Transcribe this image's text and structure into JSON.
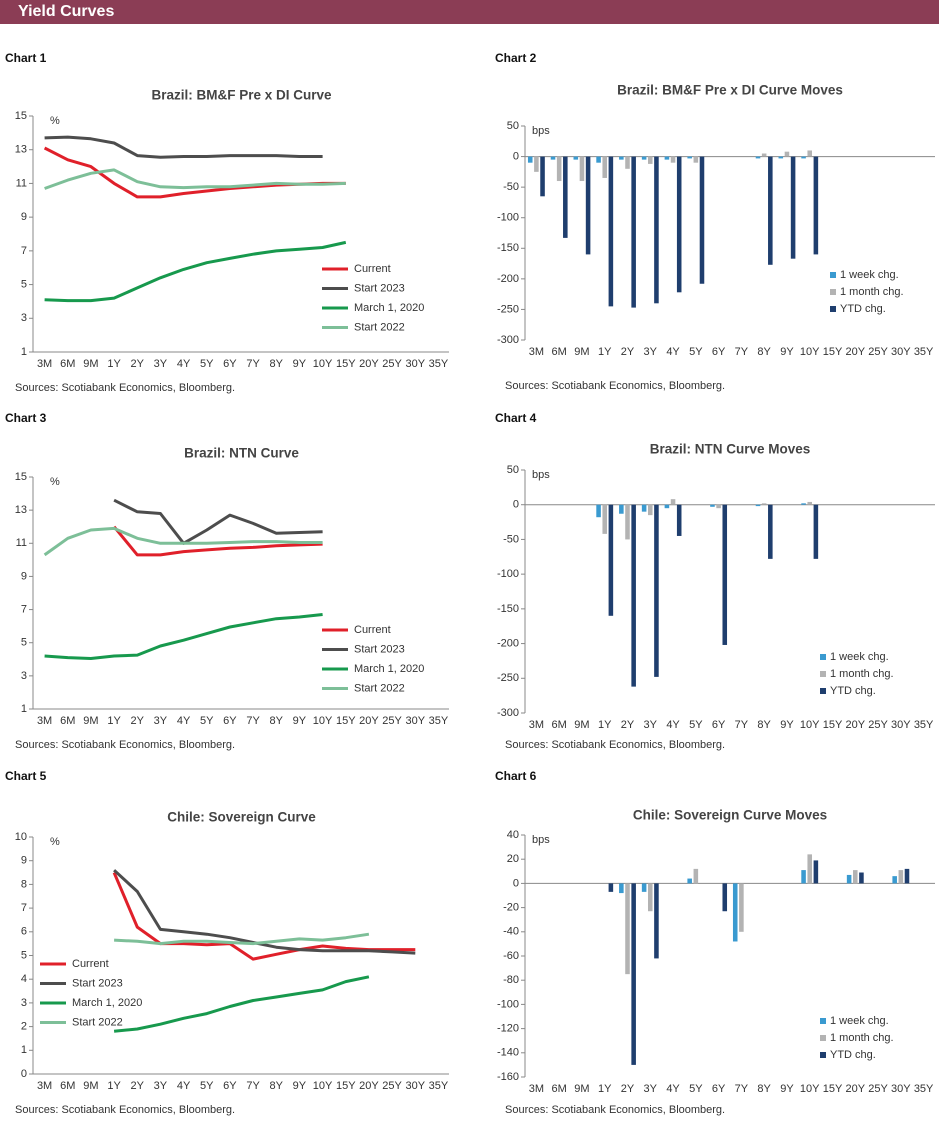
{
  "header": {
    "title": "Yield Curves"
  },
  "chart_data": [
    {
      "type": "line",
      "label": "Chart 1",
      "title": "Brazil: BM&F Pre x DI Curve",
      "y_label": "%",
      "source": "Sources: Scotiabank Economics, Bloomberg.",
      "legend": "lower right",
      "categories": [
        "3M",
        "6M",
        "9M",
        "1Y",
        "2Y",
        "3Y",
        "4Y",
        "5Y",
        "6Y",
        "7Y",
        "8Y",
        "9Y",
        "10Y",
        "15Y",
        "20Y",
        "25Y",
        "30Y",
        "35Y"
      ],
      "ylim": [
        1,
        15
      ],
      "yticks": [
        1,
        3,
        5,
        7,
        9,
        11,
        13,
        15
      ],
      "series": [
        {
          "name": "Current",
          "color": "#e0202a",
          "values": [
            13.1,
            12.4,
            12.0,
            11.0,
            10.2,
            10.2,
            10.4,
            10.55,
            10.7,
            10.8,
            10.9,
            10.95,
            11.0,
            11.0,
            null,
            null,
            null,
            null
          ]
        },
        {
          "name": "Start 2023",
          "color": "#4d4d4d",
          "values": [
            13.7,
            13.75,
            13.65,
            13.4,
            12.65,
            12.55,
            12.6,
            12.6,
            12.65,
            12.65,
            12.65,
            12.6,
            12.6,
            null,
            null,
            null,
            null,
            null
          ]
        },
        {
          "name": "March 1, 2020",
          "color": "#17994d",
          "values": [
            4.1,
            4.05,
            4.05,
            4.2,
            4.8,
            5.4,
            5.9,
            6.3,
            6.55,
            6.8,
            7.0,
            7.1,
            7.2,
            7.5,
            null,
            null,
            null,
            null
          ]
        },
        {
          "name": "Start 2022",
          "color": "#7dbf98",
          "values": [
            10.7,
            11.2,
            11.6,
            11.8,
            11.1,
            10.8,
            10.75,
            10.8,
            10.8,
            10.9,
            11.0,
            10.95,
            10.95,
            11.0,
            null,
            null,
            null,
            null
          ]
        }
      ]
    },
    {
      "type": "bar",
      "label": "Chart 2",
      "title": "Brazil: BM&F Pre x DI Curve Moves",
      "y_label": "bps",
      "source": "Sources: Scotiabank Economics, Bloomberg.",
      "legend": "lower right",
      "categories": [
        "3M",
        "6M",
        "9M",
        "1Y",
        "2Y",
        "3Y",
        "4Y",
        "5Y",
        "6Y",
        "7Y",
        "8Y",
        "9Y",
        "10Y",
        "15Y",
        "20Y",
        "25Y",
        "30Y",
        "35Y"
      ],
      "ylim": [
        -300,
        50
      ],
      "yticks": [
        -300,
        -250,
        -200,
        -150,
        -100,
        -50,
        0,
        50
      ],
      "series": [
        {
          "name": "1 week chg.",
          "color": "#3a9ad0",
          "values": [
            -10,
            -5,
            -5,
            -10,
            -5,
            -5,
            -5,
            -3,
            null,
            null,
            -3,
            -3,
            -3,
            null,
            null,
            null,
            null,
            null
          ]
        },
        {
          "name": "1 month chg.",
          "color": "#b3b3b3",
          "values": [
            -25,
            -40,
            -40,
            -35,
            -20,
            -12,
            -10,
            -10,
            null,
            null,
            5,
            8,
            10,
            null,
            null,
            null,
            null,
            null
          ]
        },
        {
          "name": "YTD chg.",
          "color": "#1f3e6e",
          "values": [
            -65,
            -133,
            -160,
            -245,
            -247,
            -240,
            -222,
            -208,
            null,
            null,
            -177,
            -167,
            -160,
            null,
            null,
            null,
            null,
            null
          ]
        }
      ]
    },
    {
      "type": "line",
      "label": "Chart 3",
      "title": "Brazil: NTN Curve",
      "y_label": "%",
      "source": "Sources: Scotiabank Economics, Bloomberg.",
      "legend": "lower right",
      "categories": [
        "3M",
        "6M",
        "9M",
        "1Y",
        "2Y",
        "3Y",
        "4Y",
        "5Y",
        "6Y",
        "7Y",
        "8Y",
        "9Y",
        "10Y",
        "15Y",
        "20Y",
        "25Y",
        "30Y",
        "35Y"
      ],
      "ylim": [
        1,
        15
      ],
      "yticks": [
        1,
        3,
        5,
        7,
        9,
        11,
        13,
        15
      ],
      "series": [
        {
          "name": "Current",
          "color": "#e0202a",
          "values": [
            null,
            null,
            null,
            12.0,
            10.3,
            10.3,
            10.5,
            10.6,
            10.7,
            10.75,
            10.85,
            10.9,
            10.95,
            null,
            null,
            null,
            null,
            null
          ]
        },
        {
          "name": "Start 2023",
          "color": "#4d4d4d",
          "values": [
            null,
            null,
            null,
            13.6,
            12.9,
            12.8,
            11.0,
            11.8,
            12.7,
            12.2,
            11.6,
            11.65,
            11.7,
            null,
            null,
            null,
            null,
            null
          ]
        },
        {
          "name": "March 1, 2020",
          "color": "#17994d",
          "values": [
            4.2,
            4.1,
            4.05,
            4.2,
            4.25,
            4.8,
            5.15,
            5.55,
            5.95,
            6.2,
            6.45,
            6.55,
            6.7,
            null,
            null,
            null,
            null,
            null
          ]
        },
        {
          "name": "Start 2022",
          "color": "#7dbf98",
          "values": [
            10.3,
            11.3,
            11.8,
            11.9,
            11.3,
            11.0,
            11.0,
            11.0,
            11.05,
            11.1,
            11.1,
            11.05,
            11.05,
            null,
            null,
            null,
            null,
            null
          ]
        }
      ]
    },
    {
      "type": "bar",
      "label": "Chart 4",
      "title": "Brazil: NTN Curve Moves",
      "y_label": "bps",
      "source": "Sources: Scotiabank Economics, Bloomberg.",
      "legend": "lower right",
      "categories": [
        "3M",
        "6M",
        "9M",
        "1Y",
        "2Y",
        "3Y",
        "4Y",
        "5Y",
        "6Y",
        "7Y",
        "8Y",
        "9Y",
        "10Y",
        "15Y",
        "20Y",
        "25Y",
        "30Y",
        "35Y"
      ],
      "ylim": [
        -300,
        50
      ],
      "yticks": [
        -300,
        -250,
        -200,
        -150,
        -100,
        -50,
        0,
        50
      ],
      "series": [
        {
          "name": "1 week chg.",
          "color": "#3a9ad0",
          "values": [
            null,
            null,
            null,
            -18,
            -13,
            -10,
            -5,
            null,
            -3,
            null,
            -2,
            null,
            2,
            null,
            null,
            null,
            null,
            null
          ]
        },
        {
          "name": "1 month chg.",
          "color": "#b3b3b3",
          "values": [
            null,
            null,
            null,
            -42,
            -50,
            -15,
            8,
            null,
            -5,
            null,
            2,
            null,
            4,
            null,
            null,
            null,
            null,
            null
          ]
        },
        {
          "name": "YTD chg.",
          "color": "#1f3e6e",
          "values": [
            null,
            null,
            null,
            -160,
            -262,
            -248,
            -45,
            null,
            -202,
            null,
            -78,
            null,
            -78,
            null,
            null,
            null,
            null,
            null
          ]
        }
      ]
    },
    {
      "type": "line",
      "label": "Chart 5",
      "title": "Chile: Sovereign Curve",
      "y_label": "%",
      "source": "Sources: Scotiabank Economics, Bloomberg.",
      "legend": "upper left",
      "categories": [
        "3M",
        "6M",
        "9M",
        "1Y",
        "2Y",
        "3Y",
        "4Y",
        "5Y",
        "6Y",
        "7Y",
        "8Y",
        "9Y",
        "10Y",
        "15Y",
        "20Y",
        "25Y",
        "30Y",
        "35Y"
      ],
      "ylim": [
        0,
        10
      ],
      "yticks": [
        0,
        1,
        2,
        3,
        4,
        5,
        6,
        7,
        8,
        9,
        10
      ],
      "series": [
        {
          "name": "Current",
          "color": "#e0202a",
          "values": [
            null,
            null,
            null,
            8.5,
            6.2,
            5.5,
            5.5,
            5.45,
            5.5,
            4.85,
            5.05,
            5.25,
            5.4,
            5.3,
            5.25,
            5.25,
            5.25,
            null
          ]
        },
        {
          "name": "Start 2023",
          "color": "#4d4d4d",
          "values": [
            null,
            null,
            null,
            8.6,
            7.7,
            6.1,
            6.0,
            5.9,
            5.75,
            5.55,
            5.35,
            5.25,
            5.2,
            5.2,
            5.2,
            5.15,
            5.1,
            null
          ]
        },
        {
          "name": "March 1, 2020",
          "color": "#17994d",
          "values": [
            null,
            null,
            null,
            1.8,
            1.9,
            2.1,
            2.35,
            2.55,
            2.85,
            3.1,
            3.25,
            3.4,
            3.55,
            3.9,
            4.1,
            null,
            null,
            null
          ]
        },
        {
          "name": "Start 2022",
          "color": "#7dbf98",
          "values": [
            null,
            null,
            null,
            5.65,
            5.6,
            5.5,
            5.6,
            5.6,
            5.55,
            5.5,
            5.6,
            5.7,
            5.65,
            5.75,
            5.9,
            null,
            null,
            null
          ]
        }
      ]
    },
    {
      "type": "bar",
      "label": "Chart 6",
      "title": "Chile: Sovereign Curve Moves",
      "y_label": "bps",
      "source": "Sources: Scotiabank Economics, Bloomberg.",
      "legend": "lower right",
      "categories": [
        "3M",
        "6M",
        "9M",
        "1Y",
        "2Y",
        "3Y",
        "4Y",
        "5Y",
        "6Y",
        "7Y",
        "8Y",
        "9Y",
        "10Y",
        "15Y",
        "20Y",
        "25Y",
        "30Y",
        "35Y"
      ],
      "ylim": [
        -160,
        40
      ],
      "yticks": [
        -160,
        -140,
        -120,
        -100,
        -80,
        -60,
        -40,
        -20,
        0,
        20,
        40
      ],
      "series": [
        {
          "name": "1 week chg.",
          "color": "#3a9ad0",
          "values": [
            null,
            null,
            null,
            null,
            -8,
            -7,
            null,
            4,
            null,
            -48,
            null,
            null,
            11,
            null,
            7,
            null,
            6,
            null
          ]
        },
        {
          "name": "1 month chg.",
          "color": "#b3b3b3",
          "values": [
            null,
            null,
            null,
            null,
            -75,
            -23,
            null,
            12,
            null,
            -40,
            null,
            null,
            24,
            null,
            11,
            null,
            11,
            null
          ]
        },
        {
          "name": "YTD chg.",
          "color": "#1f3e6e",
          "values": [
            null,
            null,
            null,
            -7,
            -150,
            -62,
            null,
            null,
            -23,
            null,
            null,
            null,
            19,
            null,
            9,
            null,
            12,
            null
          ]
        }
      ]
    }
  ]
}
